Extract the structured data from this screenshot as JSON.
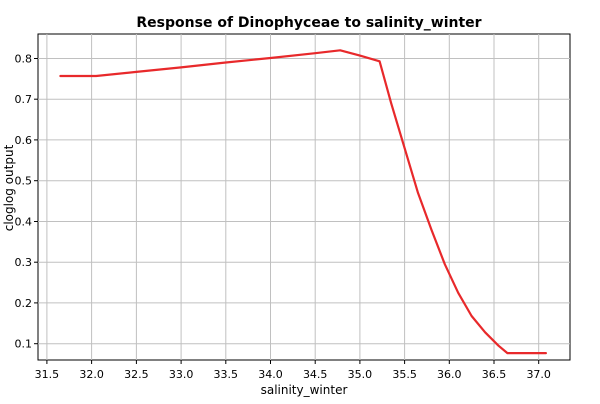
{
  "chart_data": {
    "type": "line",
    "title": "Response of Dinophyceae to salinity_winter",
    "xlabel": "salinity_winter",
    "ylabel": "cloglog output",
    "xlim": [
      31.4,
      37.35
    ],
    "ylim": [
      0.06,
      0.86
    ],
    "x_ticks": [
      31.5,
      32.0,
      32.5,
      33.0,
      33.5,
      34.0,
      34.5,
      35.0,
      35.5,
      36.0,
      36.5,
      37.0
    ],
    "x_tick_labels": [
      "31.5",
      "32.0",
      "32.5",
      "33.0",
      "33.5",
      "34.0",
      "34.5",
      "35.0",
      "35.5",
      "36.0",
      "36.5",
      "37.0"
    ],
    "y_ticks": [
      0.1,
      0.2,
      0.3,
      0.4,
      0.5,
      0.6,
      0.7,
      0.8
    ],
    "y_tick_labels": [
      "0.1",
      "0.2",
      "0.3",
      "0.4",
      "0.5",
      "0.6",
      "0.7",
      "0.8"
    ],
    "grid": true,
    "series_color": "#e8292b",
    "series": [
      {
        "x": [
          31.65,
          32.05,
          32.5,
          33.0,
          33.5,
          34.0,
          34.5,
          34.78,
          35.0,
          35.22,
          35.35,
          35.5,
          35.65,
          35.8,
          35.95,
          36.1,
          36.25,
          36.4,
          36.55,
          36.65,
          37.08
        ],
        "y": [
          0.757,
          0.757,
          0.767,
          0.778,
          0.79,
          0.801,
          0.813,
          0.82,
          0.807,
          0.793,
          0.69,
          0.58,
          0.47,
          0.38,
          0.295,
          0.225,
          0.168,
          0.128,
          0.095,
          0.077,
          0.077
        ]
      }
    ]
  }
}
